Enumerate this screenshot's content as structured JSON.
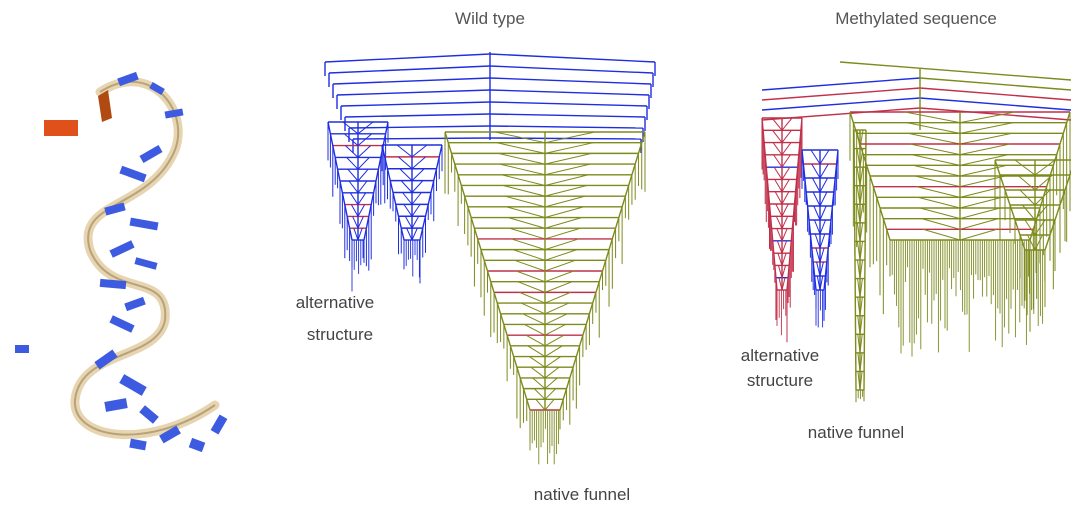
{
  "panels": [
    {
      "title": "Wild type",
      "labels": [
        {
          "lines": [
            "alternative",
            "structure"
          ]
        },
        {
          "lines": [
            "native funnel"
          ]
        }
      ]
    },
    {
      "title": "Methylated sequence",
      "labels": [
        {
          "lines": [
            "alternative",
            "structure"
          ]
        },
        {
          "lines": [
            "native funnel"
          ]
        }
      ]
    }
  ]
}
